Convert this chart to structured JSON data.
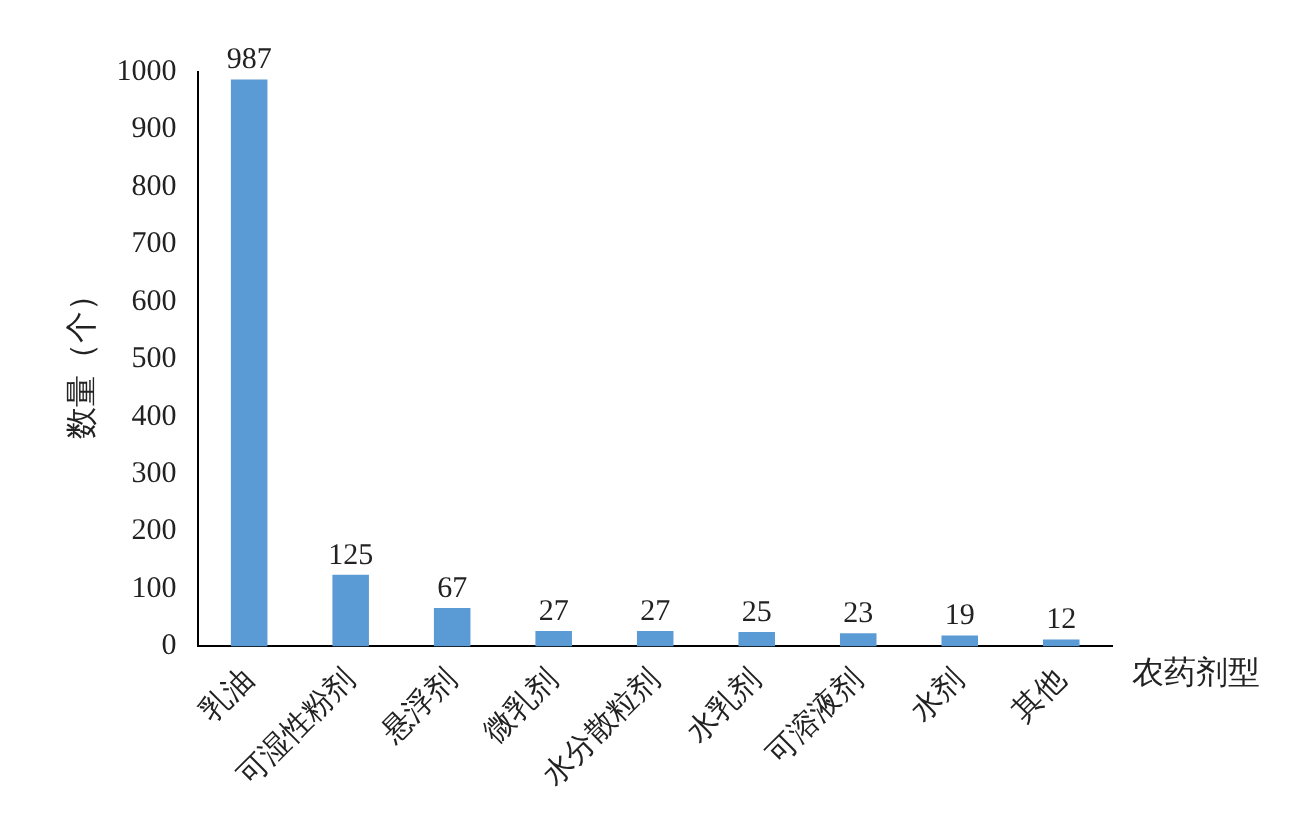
{
  "chart_data": {
    "type": "bar",
    "xlabel": "农药剂型",
    "ylabel": "数量（个）",
    "categories": [
      "乳油",
      "可湿性粉剂",
      "悬浮剂",
      "微乳剂",
      "水分散粒剂",
      "水乳剂",
      "可溶液剂",
      "水剂",
      "其他"
    ],
    "values": [
      987,
      125,
      67,
      27,
      27,
      25,
      23,
      19,
      12
    ],
    "color": "#5b9bd5",
    "ylim": [
      0,
      1000
    ],
    "yticks": [
      0,
      100,
      200,
      300,
      400,
      500,
      600,
      700,
      800,
      900,
      1000
    ],
    "grid": false,
    "legend": false,
    "data_labels": true
  }
}
